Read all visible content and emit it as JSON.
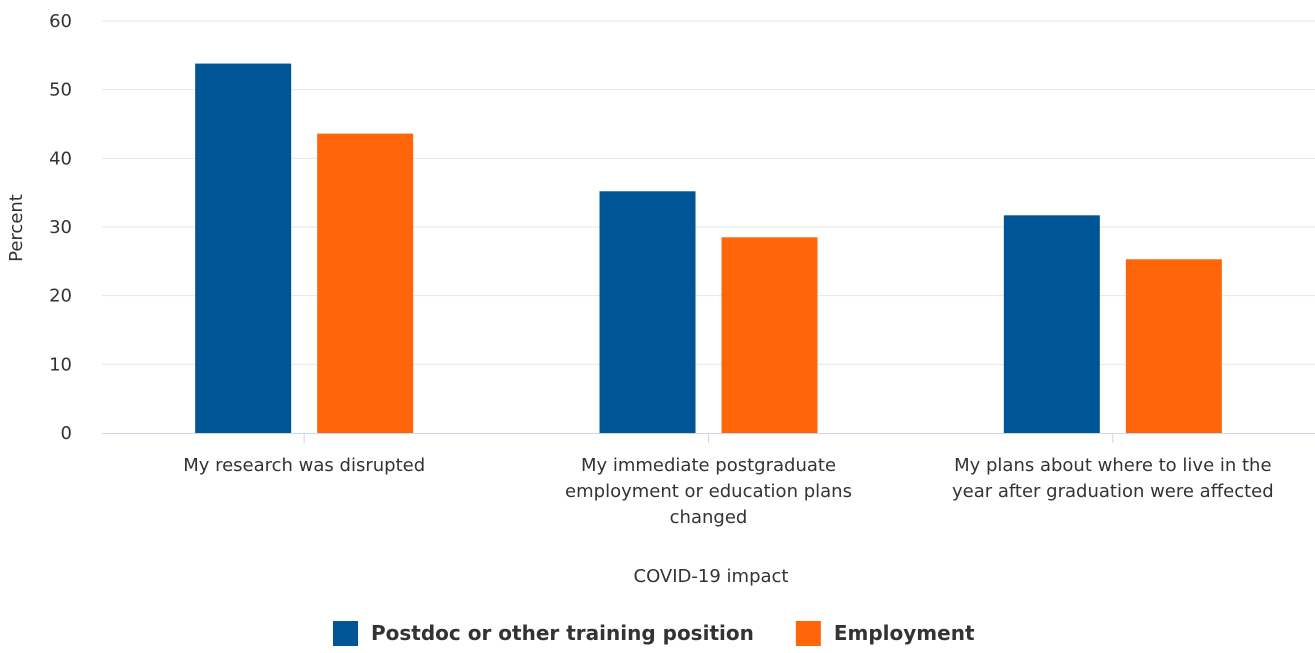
{
  "chart_data": {
    "type": "bar",
    "xlabel": "COVID-19 impact",
    "ylabel": "Percent",
    "ylim": [
      0,
      60
    ],
    "yticks": [
      0,
      10,
      20,
      30,
      40,
      50,
      60
    ],
    "grid": true,
    "legend_position": "bottom-center",
    "categories": [
      [
        "My research was disrupted"
      ],
      [
        "My immediate postgraduate",
        "employment or education plans",
        "changed"
      ],
      [
        "My plans about where to live in the",
        "year after graduation were affected"
      ]
    ],
    "series": [
      {
        "name": "Postdoc or other training position",
        "color": "#005596",
        "values": [
          53.8,
          35.2,
          31.7
        ]
      },
      {
        "name": "Employment",
        "color": "#ff6509",
        "values": [
          43.6,
          28.5,
          25.3
        ]
      }
    ]
  }
}
